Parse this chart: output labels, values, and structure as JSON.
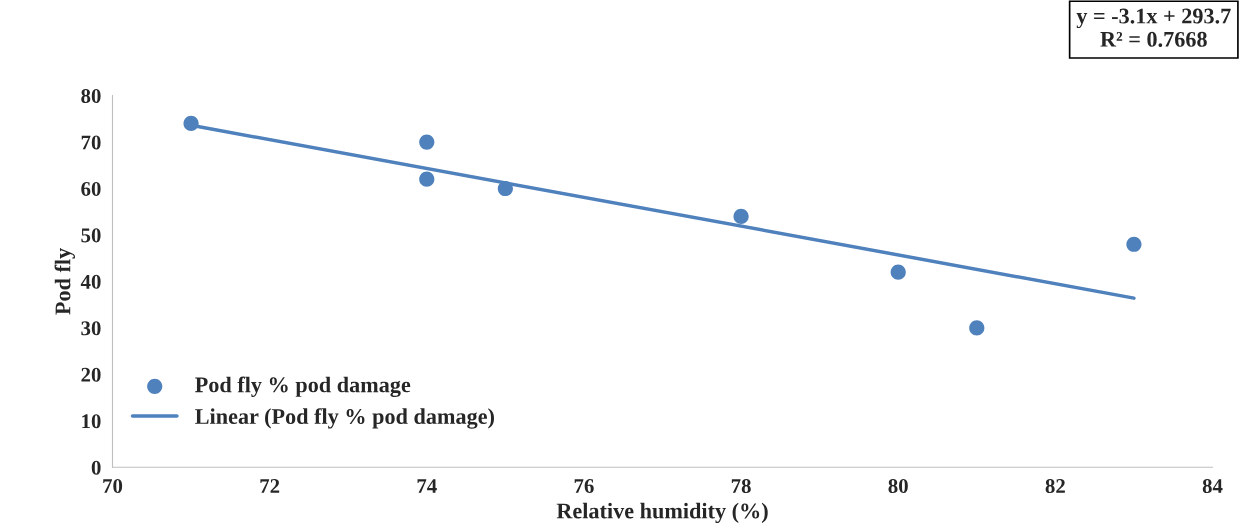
{
  "chart_data": {
    "type": "scatter",
    "xlabel": "Relative humidity (%)",
    "ylabel": "Pod fly",
    "annotations": [
      "y = -3.1x + 293.7",
      "R² = 0.7668"
    ],
    "xlim": [
      70,
      84
    ],
    "xticks": [
      70,
      72,
      74,
      76,
      78,
      80,
      82,
      84
    ],
    "ylim": [
      0,
      80
    ],
    "yticks": [
      0,
      10,
      20,
      30,
      40,
      50,
      60,
      70,
      80
    ],
    "grid": false,
    "legend": "bottom left",
    "series": [
      {
        "name": "Pod fly % pod damage",
        "color": "#4f81bd",
        "marker": "circle",
        "x": [
          71,
          74,
          74,
          75,
          78,
          80,
          81,
          83
        ],
        "values": [
          74,
          70,
          62,
          60,
          54,
          42,
          30,
          48
        ]
      },
      {
        "name": "Linear (Pod fly % pod damage)",
        "type": "line",
        "color": "#4f81bd",
        "line_style": "solid",
        "marker": "none",
        "x": [
          71,
          83
        ],
        "values": [
          73.6,
          36.4
        ]
      }
    ]
  }
}
